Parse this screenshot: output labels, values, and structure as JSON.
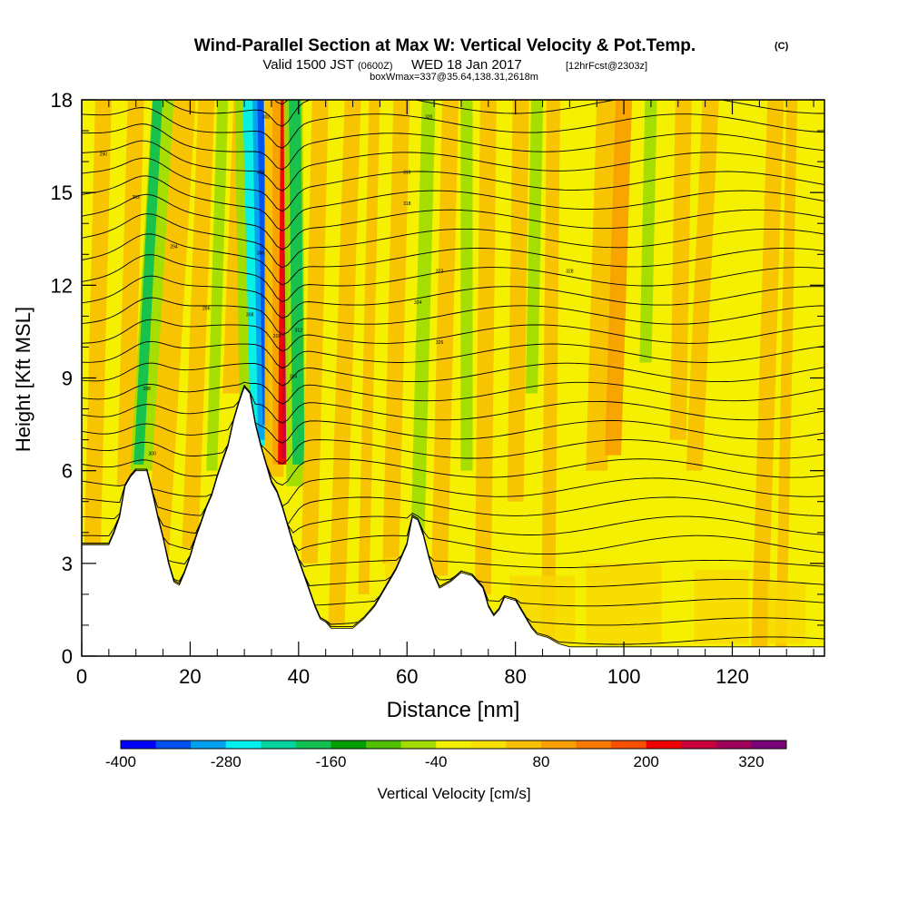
{
  "header": {
    "title": "Wind-Parallel Section at Max W: Vertical Velocity & Pot.Temp.",
    "copyright": "(C)",
    "valid_main": "Valid 1500 JST",
    "valid_utc": "(0600Z)",
    "valid_date": "WED 18 Jan 2017",
    "forecast": "[12hrFcst@2303z]",
    "box_info": "boxWmax=337@35.64,138.31,2618m"
  },
  "colorbar": {
    "title": "Vertical Velocity [cm/s]",
    "levels": [
      -400,
      -360,
      -320,
      -280,
      -240,
      -200,
      -160,
      -120,
      -80,
      -40,
      0,
      40,
      80,
      120,
      160,
      200,
      240,
      280,
      320,
      360
    ],
    "colors": [
      "#0000ff",
      "#0050f0",
      "#00a0f0",
      "#00f0f0",
      "#00d2a0",
      "#10c050",
      "#00a000",
      "#50c000",
      "#a0dc00",
      "#f0f000",
      "#f8e000",
      "#f8c000",
      "#f8a000",
      "#f87800",
      "#f85000",
      "#f00000",
      "#c8003c",
      "#a0005a",
      "#780078"
    ],
    "tick_labels": [
      "-400",
      "-280",
      "-160",
      "-40",
      "80",
      "200",
      "320"
    ]
  },
  "chart_data": {
    "type": "heatmap",
    "title": "Wind-Parallel Section at Max W: Vertical Velocity & Pot.Temp.",
    "xlabel": "Distance [nm]",
    "ylabel": "Height [Kft MSL]",
    "xlim": [
      0,
      137
    ],
    "ylim": [
      0,
      18
    ],
    "x_ticks": [
      "0",
      "20",
      "40",
      "60",
      "80",
      "100",
      "120"
    ],
    "y_ticks": [
      "0",
      "3",
      "6",
      "9",
      "12",
      "15",
      "18"
    ],
    "colorbar_label": "Vertical Velocity [cm/s]",
    "terrain_kft": [
      [
        0,
        3.6
      ],
      [
        5,
        3.6
      ],
      [
        6,
        4.0
      ],
      [
        7,
        4.5
      ],
      [
        8,
        5.5
      ],
      [
        9,
        5.8
      ],
      [
        10,
        6.0
      ],
      [
        12,
        6.0
      ],
      [
        13,
        5.3
      ],
      [
        14,
        4.5
      ],
      [
        15,
        3.8
      ],
      [
        16,
        3.0
      ],
      [
        17,
        2.4
      ],
      [
        18,
        2.3
      ],
      [
        19,
        2.7
      ],
      [
        20,
        3.2
      ],
      [
        21,
        3.8
      ],
      [
        22,
        4.3
      ],
      [
        23,
        4.8
      ],
      [
        24,
        5.2
      ],
      [
        25,
        5.8
      ],
      [
        26,
        6.3
      ],
      [
        27,
        6.8
      ],
      [
        28,
        7.6
      ],
      [
        29,
        8.2
      ],
      [
        30,
        8.7
      ],
      [
        31,
        8.5
      ],
      [
        32,
        7.5
      ],
      [
        33,
        6.8
      ],
      [
        34,
        6.2
      ],
      [
        35,
        5.6
      ],
      [
        36,
        5.3
      ],
      [
        37,
        4.8
      ],
      [
        38,
        4.2
      ],
      [
        39,
        3.6
      ],
      [
        40,
        3.1
      ],
      [
        41,
        2.6
      ],
      [
        42,
        2.1
      ],
      [
        43,
        1.6
      ],
      [
        44,
        1.2
      ],
      [
        45,
        1.1
      ],
      [
        46,
        0.9
      ],
      [
        50,
        0.9
      ],
      [
        52,
        1.2
      ],
      [
        54,
        1.6
      ],
      [
        56,
        2.2
      ],
      [
        58,
        2.8
      ],
      [
        60,
        3.6
      ],
      [
        61,
        4.5
      ],
      [
        62,
        4.4
      ],
      [
        63,
        3.9
      ],
      [
        64,
        3.2
      ],
      [
        65,
        2.6
      ],
      [
        66,
        2.2
      ],
      [
        68,
        2.4
      ],
      [
        70,
        2.7
      ],
      [
        72,
        2.6
      ],
      [
        74,
        2.2
      ],
      [
        75,
        1.6
      ],
      [
        76,
        1.3
      ],
      [
        77,
        1.5
      ],
      [
        78,
        1.9
      ],
      [
        80,
        1.8
      ],
      [
        81,
        1.5
      ],
      [
        82,
        1.2
      ],
      [
        83,
        0.9
      ],
      [
        84,
        0.7
      ],
      [
        86,
        0.6
      ],
      [
        88,
        0.4
      ],
      [
        90,
        0.3
      ],
      [
        137,
        0.3
      ]
    ],
    "updraft_cores": [
      {
        "x_base": 37,
        "x_top": 38,
        "peak_cms": 337,
        "band": "red"
      },
      {
        "x_base": 11,
        "x_top": 16,
        "peak_cms": 80,
        "band": "orange"
      }
    ],
    "downdraft_cores": [
      {
        "x_base": 34,
        "x_top": 32,
        "peak_cms": -400,
        "band": "blue"
      },
      {
        "x_base": 40,
        "x_top": 39,
        "peak_cms": -160,
        "band": "green"
      }
    ],
    "theta_contour_labels": [
      "290",
      "292",
      "294",
      "296",
      "298",
      "300",
      "302",
      "304",
      "306",
      "308",
      "310",
      "312",
      "314",
      "316",
      "318",
      "320",
      "322",
      "324",
      "326",
      "328"
    ]
  }
}
